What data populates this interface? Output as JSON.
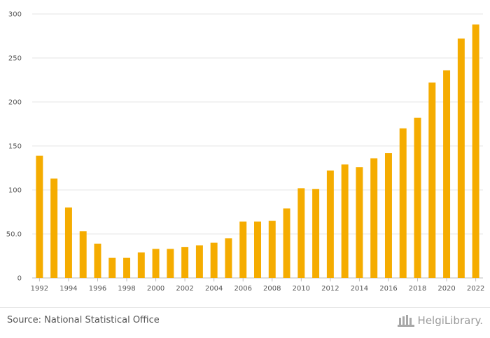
{
  "chart_data": {
    "type": "bar",
    "categories": [
      "1992",
      "1993",
      "1994",
      "1995",
      "1996",
      "1997",
      "1998",
      "1999",
      "2000",
      "2001",
      "2002",
      "2003",
      "2004",
      "2005",
      "2006",
      "2007",
      "2008",
      "2009",
      "2010",
      "2011",
      "2012",
      "2013",
      "2014",
      "2015",
      "2016",
      "2017",
      "2018",
      "2019",
      "2020",
      "2021",
      "2022"
    ],
    "x_tick_labels": [
      "1992",
      "1994",
      "1996",
      "1998",
      "2000",
      "2002",
      "2004",
      "2006",
      "2008",
      "2010",
      "2012",
      "2014",
      "2016",
      "2018",
      "2020",
      "2022"
    ],
    "values": [
      139,
      113,
      80,
      53,
      39,
      23,
      23,
      29,
      33,
      33,
      35,
      37,
      40,
      45,
      64,
      64,
      65,
      79,
      102,
      101,
      122,
      129,
      126,
      136,
      142,
      170,
      182,
      222,
      236,
      272,
      288
    ],
    "y_ticks": [
      "0",
      "50.0",
      "100",
      "150",
      "200",
      "250",
      "300"
    ],
    "ylim": [
      0,
      300
    ],
    "grid": true,
    "bar_color": "#f5ac00",
    "title": "",
    "xlabel": "",
    "ylabel": ""
  },
  "footer": {
    "source": "Source: National Statistical Office",
    "logo_text": "HelgiLibrary."
  }
}
